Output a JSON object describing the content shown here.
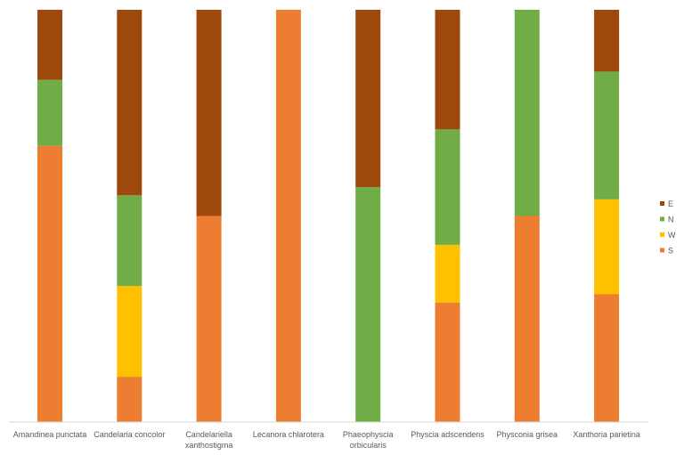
{
  "chart_data": {
    "type": "bar",
    "stacked": "percent",
    "categories": [
      [
        "Amandinea punctata"
      ],
      [
        "Candelaria concolor"
      ],
      [
        "Candelariella",
        "xanthostigma"
      ],
      [
        "Lecanora chlarotera"
      ],
      [
        "Phaeophyscia",
        "orbicularis"
      ],
      [
        "Physcia adscendens"
      ],
      [
        "Physconia grisea"
      ],
      [
        "Xanthoria parietina"
      ]
    ],
    "series": [
      {
        "name": "S",
        "color": "#ED7D31",
        "values": [
          67,
          11,
          50,
          100,
          0,
          29,
          50,
          31
        ]
      },
      {
        "name": "W",
        "color": "#FFC000",
        "values": [
          0,
          22,
          0,
          0,
          0,
          14,
          0,
          23
        ]
      },
      {
        "name": "N",
        "color": "#70AD47",
        "values": [
          16,
          22,
          0,
          0,
          57,
          28,
          50,
          31
        ]
      },
      {
        "name": "E",
        "color": "#9E480E",
        "values": [
          17,
          45,
          50,
          0,
          43,
          29,
          0,
          15
        ]
      }
    ],
    "legend_order": [
      "E",
      "N",
      "W",
      "S"
    ],
    "legend_position": "right",
    "ylim": [
      0,
      100
    ],
    "grid": false,
    "xlabel": "",
    "ylabel": "",
    "title": ""
  }
}
